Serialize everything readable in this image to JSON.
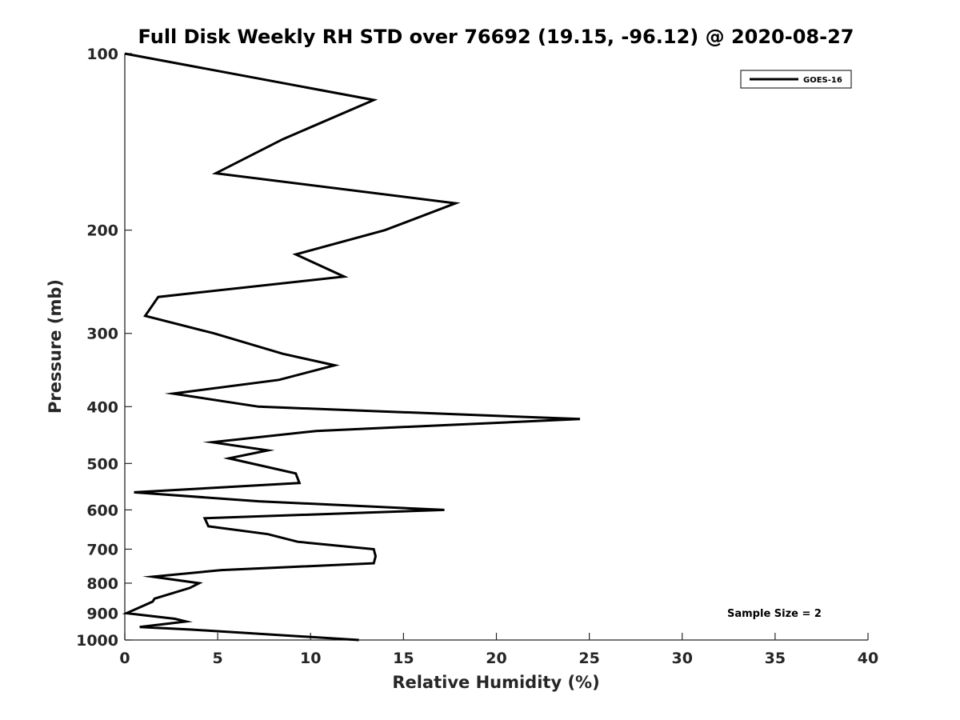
{
  "chart_data": {
    "type": "line",
    "title": "Full Disk Weekly RH STD over 76692 (19.15, -96.12) @ 2020-08-27",
    "xlabel": "Relative Humidity (%)",
    "ylabel": "Pressure (mb)",
    "xlim": [
      0,
      40
    ],
    "ylim": [
      100,
      1000
    ],
    "yscale": "log",
    "ydirection": "reverse",
    "xticks": [
      0,
      5,
      10,
      15,
      20,
      25,
      30,
      35,
      40
    ],
    "yticks": [
      100,
      200,
      300,
      400,
      500,
      600,
      700,
      800,
      900,
      1000
    ],
    "grid": false,
    "legend": {
      "placement": "top-right",
      "entries": [
        "GOES-16"
      ]
    },
    "annotation": "Sample Size = 2",
    "series": [
      {
        "name": "GOES-16",
        "color": "#000000",
        "points": [
          [
            0.0,
            100
          ],
          [
            13.4,
            120
          ],
          [
            8.5,
            140
          ],
          [
            4.9,
            160
          ],
          [
            17.8,
            180
          ],
          [
            14.0,
            200
          ],
          [
            9.2,
            220
          ],
          [
            11.8,
            240
          ],
          [
            1.8,
            260
          ],
          [
            1.1,
            280
          ],
          [
            4.8,
            300
          ],
          [
            8.5,
            325
          ],
          [
            11.3,
            340
          ],
          [
            8.3,
            360
          ],
          [
            2.6,
            380
          ],
          [
            7.2,
            400
          ],
          [
            24.5,
            420
          ],
          [
            10.3,
            440
          ],
          [
            4.7,
            460
          ],
          [
            7.7,
            475
          ],
          [
            5.6,
            490
          ],
          [
            9.2,
            520
          ],
          [
            9.4,
            540
          ],
          [
            0.5,
            560
          ],
          [
            7.2,
            580
          ],
          [
            17.2,
            600
          ],
          [
            4.3,
            620
          ],
          [
            4.5,
            640
          ],
          [
            7.7,
            660
          ],
          [
            9.3,
            680
          ],
          [
            13.4,
            700
          ],
          [
            13.5,
            720
          ],
          [
            13.4,
            740
          ],
          [
            5.2,
            760
          ],
          [
            1.5,
            780
          ],
          [
            4.0,
            800
          ],
          [
            3.5,
            815
          ],
          [
            1.6,
            850
          ],
          [
            1.5,
            860
          ],
          [
            0.1,
            900
          ],
          [
            2.7,
            920
          ],
          [
            3.3,
            930
          ],
          [
            0.8,
            950
          ],
          [
            3.6,
            960
          ],
          [
            12.6,
            1000
          ]
        ]
      }
    ]
  }
}
